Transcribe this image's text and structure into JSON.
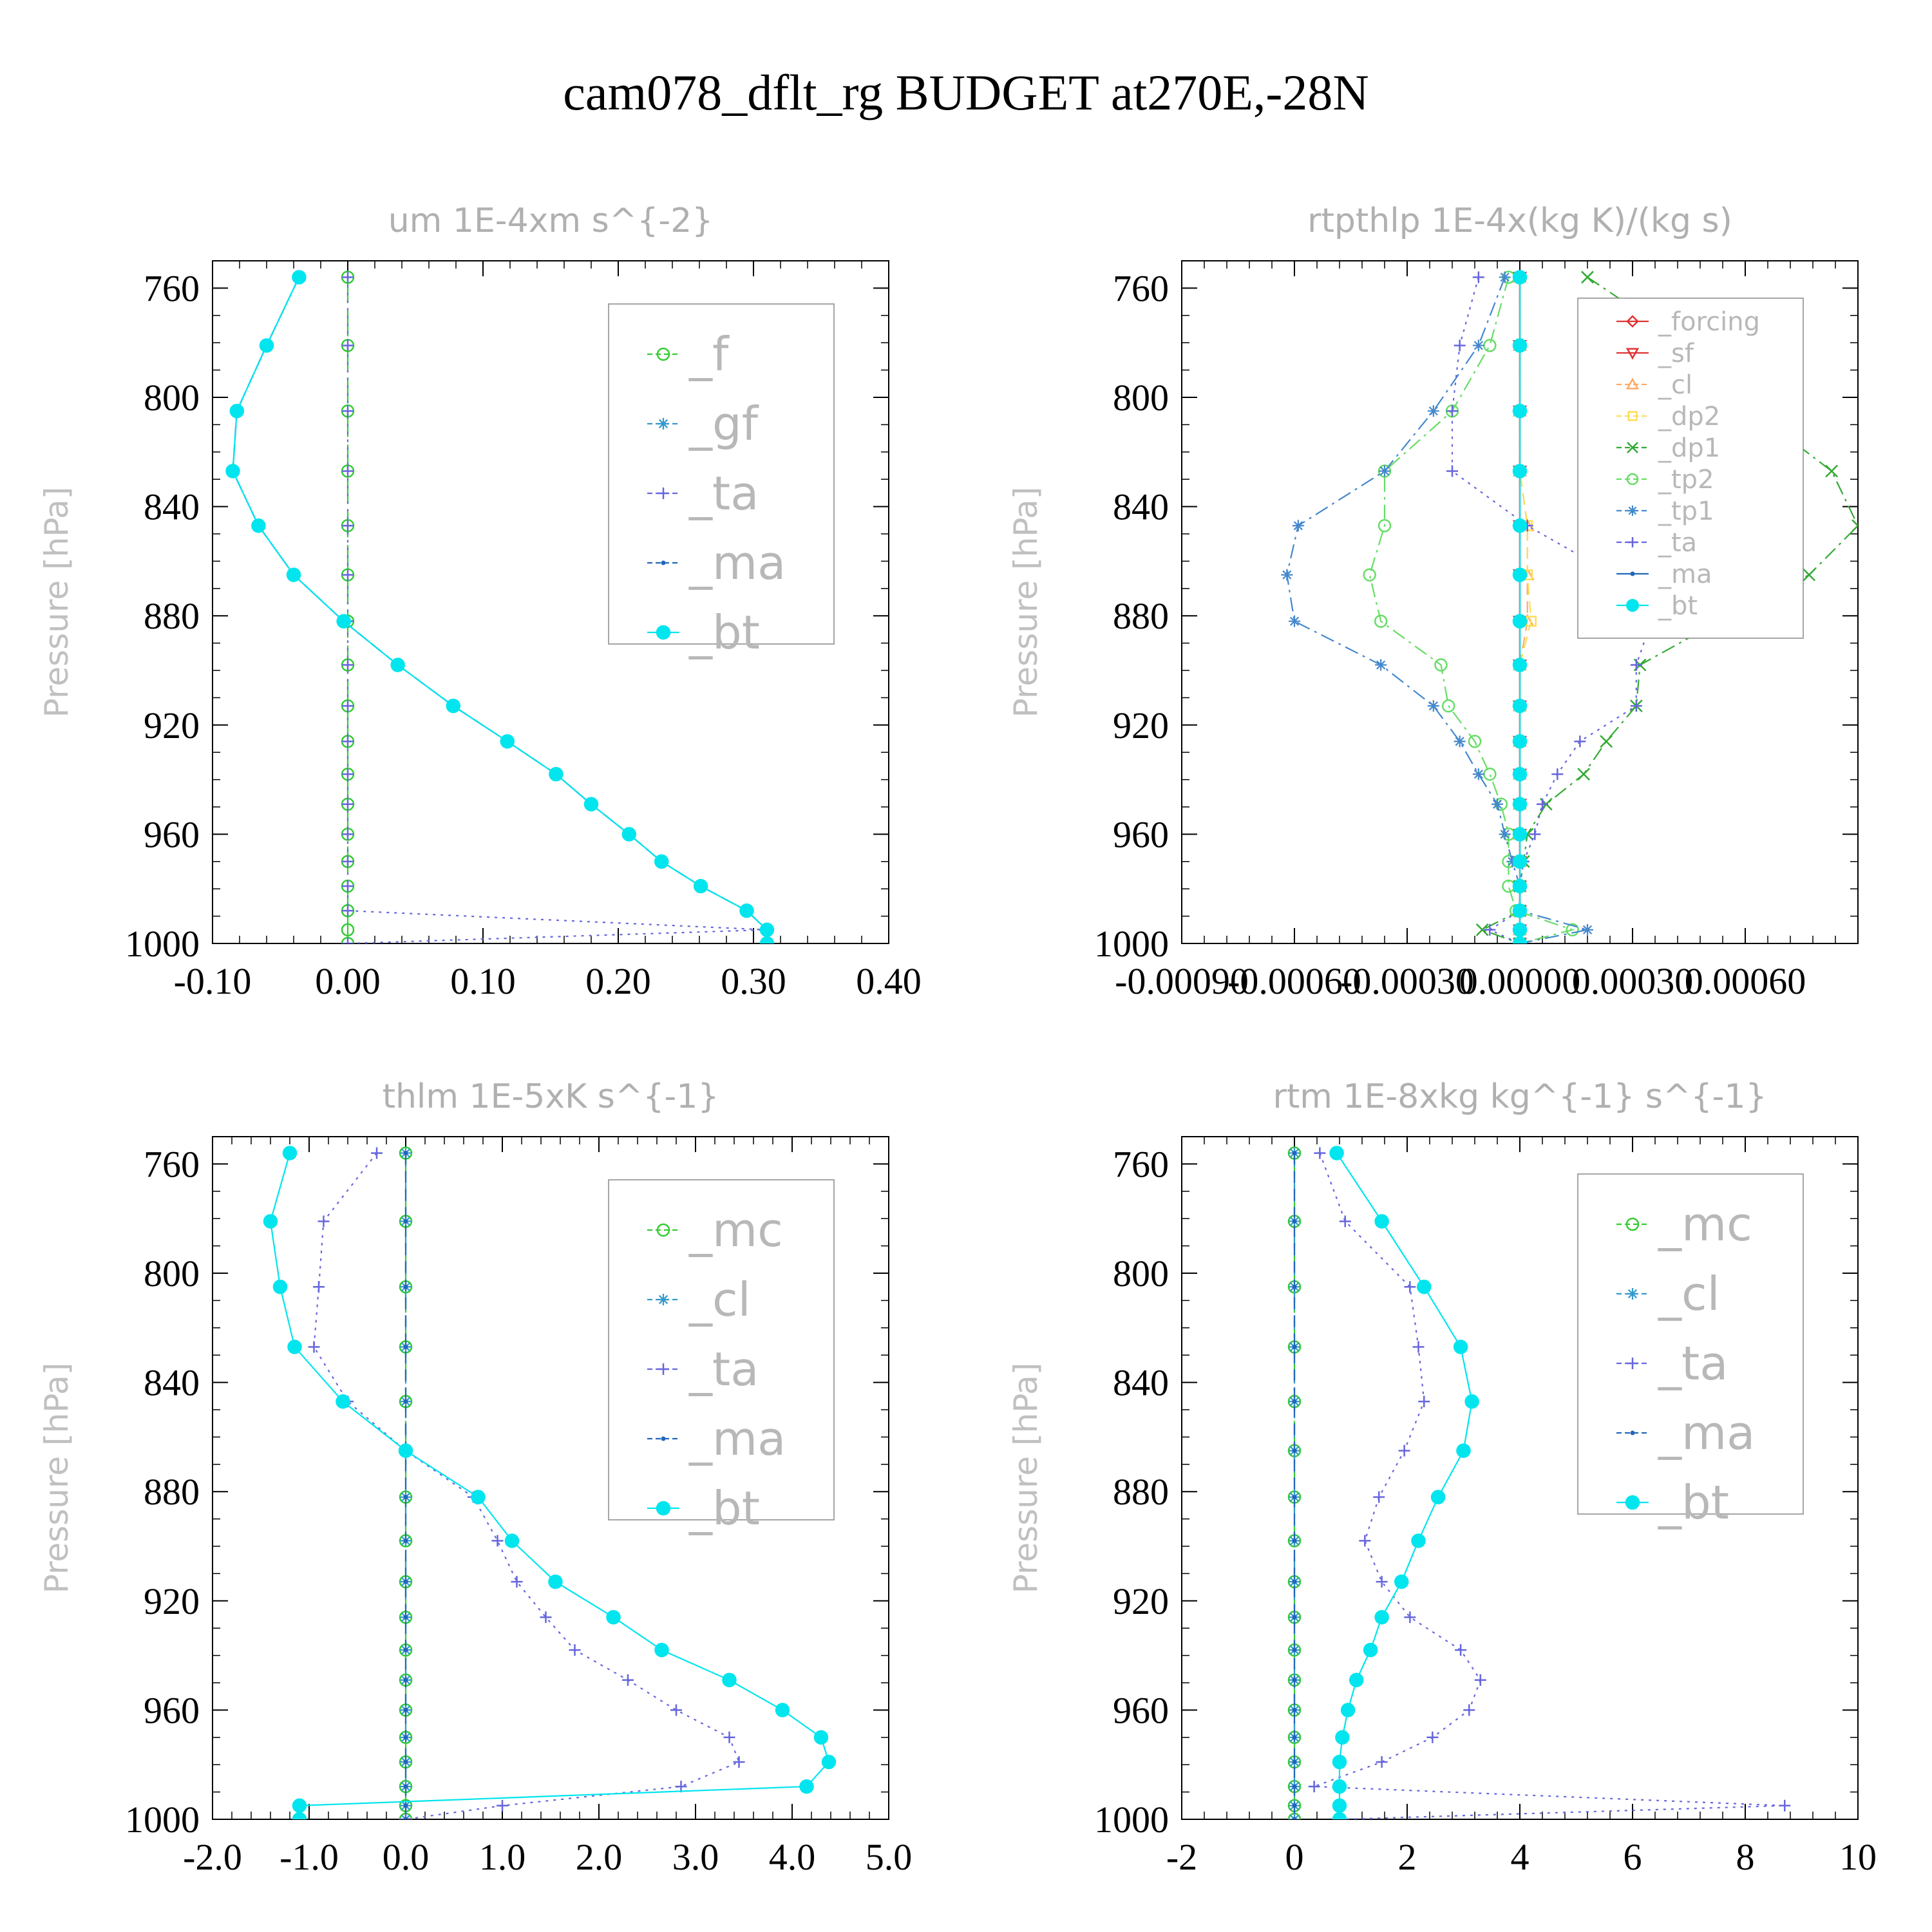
{
  "title": "cam078_dflt_rg  BUDGET at270E,-28N",
  "chart_data": [
    {
      "type": "line",
      "title": "um  1E-4xm s^{-2}",
      "ylabel": "Pressure [hPa]",
      "xlim": [
        -0.1,
        0.4
      ],
      "ylim": [
        750,
        1000
      ],
      "x_ticks": [
        "-0.10",
        "0.00",
        "0.10",
        "0.20",
        "0.30",
        "0.40"
      ],
      "x_tick_values": [
        -0.1,
        0.0,
        0.1,
        0.2,
        0.3,
        0.4
      ],
      "y_ticks": [
        "760",
        "800",
        "840",
        "880",
        "920",
        "960",
        "1000"
      ],
      "y_tick_values": [
        760,
        800,
        840,
        880,
        920,
        960,
        1000
      ],
      "pressure": [
        756,
        781,
        805,
        827,
        847,
        865,
        882,
        898,
        913,
        926,
        938,
        949,
        960,
        970,
        979,
        988,
        995,
        1000
      ],
      "series": [
        {
          "name": "_f",
          "color": "#33cc33",
          "marker": "circle-open",
          "dash": "long",
          "values": [
            0,
            0,
            0,
            0,
            0,
            0,
            0,
            0,
            0,
            0,
            0,
            0,
            0,
            0,
            0,
            0,
            0,
            0
          ]
        },
        {
          "name": "_gf",
          "color": "#3399cc",
          "marker": "asterisk",
          "dash": "dashdot",
          "values": [
            -0.036,
            -0.06,
            -0.082,
            -0.085,
            -0.066,
            -0.04,
            -0.003,
            0.037,
            0.078,
            0.118,
            0.154,
            0.18,
            0.208,
            0.232,
            0.261,
            0.295,
            0.31,
            0.31
          ]
        },
        {
          "name": "_ta",
          "color": "#6666dd",
          "marker": "plus",
          "dash": "dot",
          "values": [
            0,
            0,
            0,
            0,
            0,
            0,
            0,
            0,
            0,
            0,
            0,
            0,
            0,
            0,
            0,
            0,
            0.31,
            0
          ]
        },
        {
          "name": "_ma",
          "color": "#2266bb",
          "marker": "dot",
          "dash": "dash",
          "values": [
            -0.036,
            -0.06,
            -0.082,
            -0.085,
            -0.066,
            -0.04,
            -0.003,
            0.037,
            0.078,
            0.118,
            0.154,
            0.18,
            0.208,
            0.232,
            0.261,
            0.295,
            0.31,
            0.31
          ]
        },
        {
          "name": "_bt",
          "color": "#00e5ee",
          "marker": "filled-circle",
          "dash": "solid",
          "values": [
            -0.036,
            -0.06,
            -0.082,
            -0.085,
            -0.066,
            -0.04,
            -0.003,
            0.037,
            0.078,
            0.118,
            0.154,
            0.18,
            0.208,
            0.232,
            0.261,
            0.295,
            0.31,
            0.31
          ]
        }
      ]
    },
    {
      "type": "line",
      "title": "rtpthlp  1E-4x(kg K)/(kg s)",
      "ylabel": "Pressure [hPa]",
      "xlim": [
        -0.0009,
        0.0009
      ],
      "ylim": [
        750,
        1000
      ],
      "x_ticks": [
        "-0.00090",
        "-0.00060",
        "-0.00030",
        "0.00000",
        "0.00030",
        "0.00060"
      ],
      "x_tick_values": [
        -0.0009,
        -0.0006,
        -0.0003,
        0.0,
        0.0003,
        0.0006
      ],
      "y_ticks": [
        "760",
        "800",
        "840",
        "880",
        "920",
        "960",
        "1000"
      ],
      "y_tick_values": [
        760,
        800,
        840,
        880,
        920,
        960,
        1000
      ],
      "pressure": [
        756,
        781,
        805,
        827,
        847,
        865,
        882,
        898,
        913,
        926,
        938,
        949,
        960,
        970,
        979,
        988,
        995,
        1000
      ],
      "legend_font": "small",
      "series": [
        {
          "name": "_forcing",
          "color": "#dd3333",
          "marker": "diamond",
          "dash": "solid",
          "values": [
            0,
            0,
            0,
            0,
            0,
            0,
            0,
            0,
            0,
            0,
            0,
            0,
            0,
            0,
            0,
            0,
            0,
            0
          ]
        },
        {
          "name": "_sf",
          "color": "#dd3333",
          "marker": "triangle-down",
          "dash": "solid",
          "values": [
            0,
            0,
            0,
            0,
            0,
            0,
            0,
            0,
            0,
            0,
            0,
            0,
            0,
            0,
            0,
            0,
            0,
            0
          ]
        },
        {
          "name": "_cl",
          "color": "#ffaa66",
          "marker": "triangle-up",
          "dash": "dash",
          "values": [
            0,
            0,
            0,
            0,
            2e-05,
            2e-05,
            2e-05,
            0,
            0,
            0,
            0,
            0,
            0,
            0,
            0,
            0,
            0,
            0
          ]
        },
        {
          "name": "_dp2",
          "color": "#ffdd55",
          "marker": "square",
          "dash": "dash",
          "values": [
            0,
            0,
            0,
            0,
            2e-05,
            2e-05,
            3e-05,
            0,
            0,
            0,
            0,
            0,
            0,
            0,
            0,
            0,
            0,
            0
          ]
        },
        {
          "name": "_dp1",
          "color": "#33aa33",
          "marker": "x",
          "dash": "dashdot",
          "values": [
            0.00018,
            0.00045,
            0.00062,
            0.00083,
            0.0009,
            0.00077,
            0.00053,
            0.00032,
            0.00031,
            0.00023,
            0.00017,
            7e-05,
            2e-05,
            1e-05,
            0,
            0,
            -0.0001,
            0
          ]
        },
        {
          "name": "_tp2",
          "color": "#66dd66",
          "marker": "circle-open",
          "dash": "dashdot",
          "values": [
            -3e-05,
            -8e-05,
            -0.00018,
            -0.00036,
            -0.00036,
            -0.0004,
            -0.00037,
            -0.00021,
            -0.00019,
            -0.00012,
            -8e-05,
            -5e-05,
            -3e-05,
            -3e-05,
            -3e-05,
            -1e-05,
            0.00014,
            0
          ]
        },
        {
          "name": "_tp1",
          "color": "#4488cc",
          "marker": "asterisk",
          "dash": "dashdot",
          "values": [
            -4e-05,
            -0.00011,
            -0.00023,
            -0.00036,
            -0.00059,
            -0.00062,
            -0.0006,
            -0.00037,
            -0.00023,
            -0.00016,
            -0.00011,
            -6e-05,
            -4e-05,
            -2e-05,
            0,
            0,
            0.00018,
            0
          ]
        },
        {
          "name": "_ta",
          "color": "#6666dd",
          "marker": "plus",
          "dash": "dot",
          "values": [
            -0.00011,
            -0.00016,
            -0.00018,
            -0.00018,
            2e-05,
            0.00025,
            0.00035,
            0.00031,
            0.00031,
            0.00016,
            0.0001,
            6e-05,
            4e-05,
            1e-05,
            0,
            0,
            -8e-05,
            0
          ]
        },
        {
          "name": "_ma",
          "color": "#2266bb",
          "marker": "dot",
          "dash": "solid",
          "values": [
            0,
            0,
            0,
            0,
            0,
            0,
            0,
            0,
            0,
            0,
            0,
            0,
            0,
            0,
            0,
            0,
            0,
            0
          ]
        },
        {
          "name": "_bt",
          "color": "#00e5ee",
          "marker": "filled-circle",
          "dash": "solid",
          "values": [
            0,
            0,
            0,
            0,
            0,
            0,
            0,
            0,
            0,
            0,
            0,
            0,
            0,
            0,
            0,
            0,
            0,
            0
          ]
        }
      ]
    },
    {
      "type": "line",
      "title": "thlm  1E-5xK s^{-1}",
      "ylabel": "Pressure [hPa]",
      "xlim": [
        -2.0,
        5.0
      ],
      "ylim": [
        750,
        1000
      ],
      "x_ticks": [
        "-2.0",
        "-1.0",
        "0.0",
        "1.0",
        "2.0",
        "3.0",
        "4.0",
        "5.0"
      ],
      "x_tick_values": [
        -2,
        -1,
        0,
        1,
        2,
        3,
        4,
        5
      ],
      "y_ticks": [
        "760",
        "800",
        "840",
        "880",
        "920",
        "960",
        "1000"
      ],
      "y_tick_values": [
        760,
        800,
        840,
        880,
        920,
        960,
        1000
      ],
      "pressure": [
        756,
        781,
        805,
        827,
        847,
        865,
        882,
        898,
        913,
        926,
        938,
        949,
        960,
        970,
        979,
        988,
        995,
        1000
      ],
      "series": [
        {
          "name": "_mc",
          "color": "#33cc33",
          "marker": "circle-open",
          "dash": "long",
          "values": [
            0,
            0,
            0,
            0,
            0,
            0,
            0,
            0,
            0,
            0,
            0,
            0,
            0,
            0,
            0,
            0,
            0,
            0
          ]
        },
        {
          "name": "_cl",
          "color": "#3399cc",
          "marker": "asterisk",
          "dash": "dashdot",
          "values": [
            0,
            0,
            0,
            0,
            0,
            0,
            0,
            0,
            0,
            0,
            0,
            0,
            0,
            0,
            0,
            0,
            0,
            0
          ]
        },
        {
          "name": "_ta",
          "color": "#6666dd",
          "marker": "plus",
          "dash": "dot",
          "values": [
            -0.3,
            -0.85,
            -0.9,
            -0.95,
            -0.6,
            0,
            0.7,
            0.95,
            1.15,
            1.45,
            1.75,
            2.3,
            2.8,
            3.35,
            3.45,
            2.85,
            1.0,
            0
          ]
        },
        {
          "name": "_ma",
          "color": "#2266bb",
          "marker": "dot",
          "dash": "dash",
          "values": [
            0,
            0,
            0,
            0,
            0,
            0,
            0,
            0,
            0,
            0,
            0,
            0,
            0,
            0,
            0,
            0,
            0,
            0
          ]
        },
        {
          "name": "_bt",
          "color": "#00e5ee",
          "marker": "filled-circle",
          "dash": "solid",
          "values": [
            -1.2,
            -1.4,
            -1.3,
            -1.15,
            -0.65,
            0,
            0.75,
            1.1,
            1.55,
            2.15,
            2.65,
            3.35,
            3.9,
            4.3,
            4.38,
            4.15,
            -1.1,
            -1.1
          ]
        }
      ]
    },
    {
      "type": "line",
      "title": "rtm  1E-8xkg kg^{-1} s^{-1}",
      "ylabel": "Pressure [hPa]",
      "xlim": [
        -2,
        10
      ],
      "ylim": [
        750,
        1000
      ],
      "x_ticks": [
        "-2",
        "0",
        "2",
        "4",
        "6",
        "8",
        "10"
      ],
      "x_tick_values": [
        -2,
        0,
        2,
        4,
        6,
        8,
        10
      ],
      "y_ticks": [
        "760",
        "800",
        "840",
        "880",
        "920",
        "960",
        "1000"
      ],
      "y_tick_values": [
        760,
        800,
        840,
        880,
        920,
        960,
        1000
      ],
      "pressure": [
        756,
        781,
        805,
        827,
        847,
        865,
        882,
        898,
        913,
        926,
        938,
        949,
        960,
        970,
        979,
        988,
        995,
        1000
      ],
      "series": [
        {
          "name": "_mc",
          "color": "#33cc33",
          "marker": "circle-open",
          "dash": "long",
          "values": [
            0,
            0,
            0,
            0,
            0,
            0,
            0,
            0,
            0,
            0,
            0,
            0,
            0,
            0,
            0,
            0,
            0,
            0
          ]
        },
        {
          "name": "_cl",
          "color": "#3399cc",
          "marker": "asterisk",
          "dash": "dashdot",
          "values": [
            0,
            0,
            0,
            0,
            0,
            0,
            0,
            0,
            0,
            0,
            0,
            0,
            0,
            0,
            0,
            0,
            0,
            0
          ]
        },
        {
          "name": "_ta",
          "color": "#6666dd",
          "marker": "plus",
          "dash": "dot",
          "values": [
            0.45,
            0.9,
            2.05,
            2.2,
            2.3,
            1.95,
            1.5,
            1.25,
            1.55,
            2.05,
            2.95,
            3.3,
            3.1,
            2.45,
            1.55,
            0.35,
            8.7,
            0.85
          ]
        },
        {
          "name": "_ma",
          "color": "#2266bb",
          "marker": "dot",
          "dash": "dash",
          "values": [
            0,
            0,
            0,
            0,
            0,
            0,
            0,
            0,
            0,
            0,
            0,
            0,
            0,
            0,
            0,
            0,
            0,
            0
          ]
        },
        {
          "name": "_bt",
          "color": "#00e5ee",
          "marker": "filled-circle",
          "dash": "solid",
          "values": [
            0.75,
            1.55,
            2.3,
            2.95,
            3.15,
            3.0,
            2.55,
            2.2,
            1.9,
            1.55,
            1.35,
            1.1,
            0.95,
            0.85,
            0.8,
            0.8,
            0.8,
            0.8
          ]
        }
      ]
    }
  ]
}
